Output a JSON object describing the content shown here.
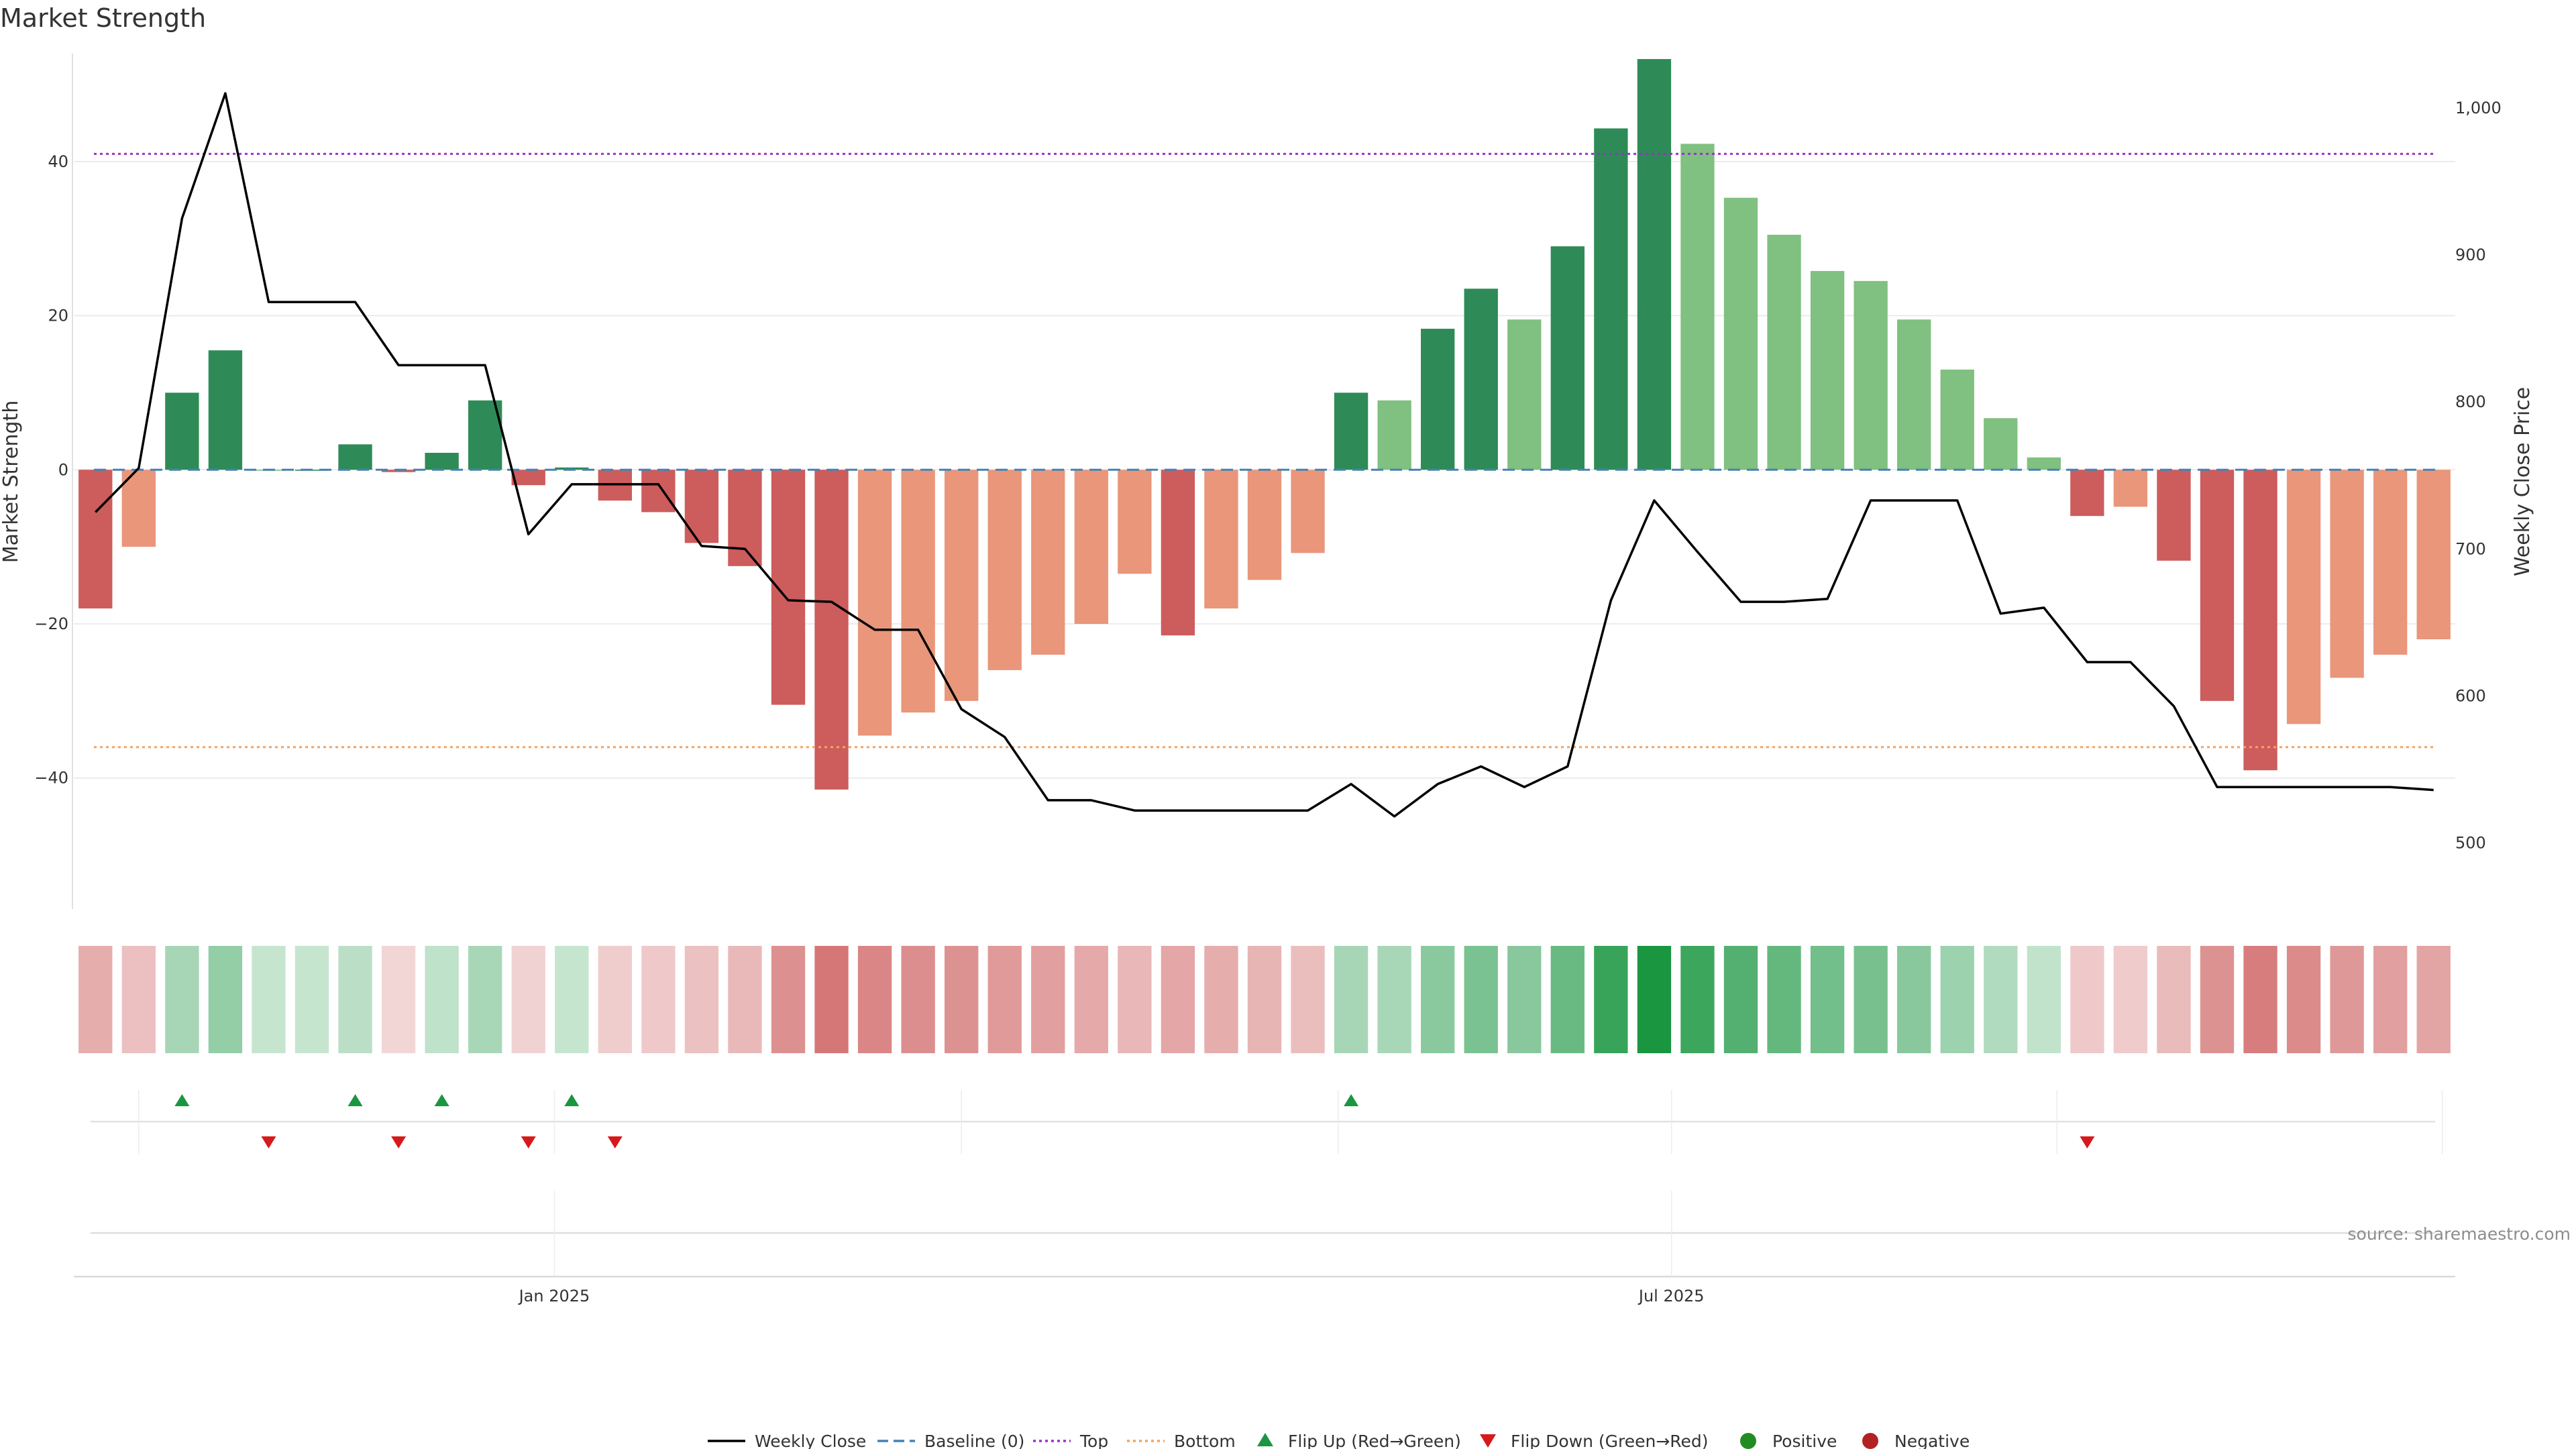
{
  "chart_data": {
    "type": "bar",
    "title": "Market Strength",
    "ylabel": "Market Strength",
    "y2label": "Weekly Close Price",
    "ylim": [
      -57,
      54
    ],
    "y2lim": [
      455,
      1037
    ],
    "yticks": [
      40,
      20,
      0,
      -20,
      -40
    ],
    "y2ticks": [
      {
        "value": 1000,
        "label": "1,000"
      },
      {
        "value": 900,
        "label": "900"
      },
      {
        "value": 800,
        "label": "800"
      },
      {
        "value": 700,
        "label": "700"
      },
      {
        "value": 600,
        "label": "600"
      },
      {
        "value": 500,
        "label": "500"
      }
    ],
    "xticks": [
      {
        "index": 10.6,
        "label": "Jan 2025"
      },
      {
        "index": 36.4,
        "label": "Jul 2025"
      }
    ],
    "top_level": 41,
    "bottom_level": -36,
    "baseline": 0,
    "strength": [
      -18,
      -10,
      10,
      15.5,
      0,
      0,
      3.3,
      -0.3,
      2.2,
      9,
      -2,
      0.3,
      -4,
      -5.5,
      -9.5,
      -12.5,
      -30.5,
      -41.5,
      -34.5,
      -31.5,
      -30,
      -26,
      -24,
      -20,
      -13.5,
      -21.5,
      -18,
      -14.3,
      -10.8,
      10,
      9,
      18.3,
      23.5,
      19.5,
      29,
      44.3,
      53.3,
      42.3,
      35.3,
      30.5,
      25.8,
      24.5,
      19.5,
      13,
      6.7,
      1.6,
      -6,
      -4.8,
      -11.8,
      -30,
      -39,
      -33,
      -27,
      -24,
      -22
    ],
    "weekly_close": [
      725,
      755,
      925,
      1010,
      868,
      868,
      868,
      825,
      825,
      825,
      710,
      744,
      744,
      744,
      702,
      700,
      665,
      664,
      645,
      645,
      591,
      572,
      529,
      529,
      522,
      522,
      522,
      522,
      522,
      540,
      518,
      540,
      552,
      538,
      552,
      665,
      733,
      698,
      664,
      664,
      666,
      733,
      733,
      733,
      656,
      660,
      623,
      623,
      593,
      538,
      538,
      538,
      538,
      538,
      536
    ],
    "flip_up_indices": [
      2,
      6,
      8,
      11,
      29
    ],
    "flip_down_indices": [
      4,
      7,
      10,
      12,
      46
    ],
    "legend": [
      {
        "label": "Weekly Close",
        "key": "close"
      },
      {
        "label": "Baseline (0)",
        "key": "baseline"
      },
      {
        "label": "Top",
        "key": "top"
      },
      {
        "label": "Bottom",
        "key": "bottom"
      },
      {
        "label": "Flip Up (Red→Green)",
        "key": "flipup"
      },
      {
        "label": "Flip Down (Green→Red)",
        "key": "flipdown"
      },
      {
        "label": "Positive",
        "key": "positive"
      },
      {
        "label": "Negative",
        "key": "negative"
      }
    ],
    "legend_position": "bottom-center",
    "grid": true,
    "source": "source: sharemaestro.com",
    "colors": {
      "strong_positive": "#2e8b57",
      "weak_positive": "#80c080",
      "strong_negative": "#cd5c5c",
      "weak_negative": "#e9967a",
      "close_line": "#000000",
      "baseline": "#4682b4",
      "top": "#9932cc",
      "bottom": "#f4a460",
      "flip_up": "#1a9641",
      "flip_down": "#d7191c",
      "positive_dot": "#228b22",
      "negative_dot": "#b22222"
    }
  }
}
